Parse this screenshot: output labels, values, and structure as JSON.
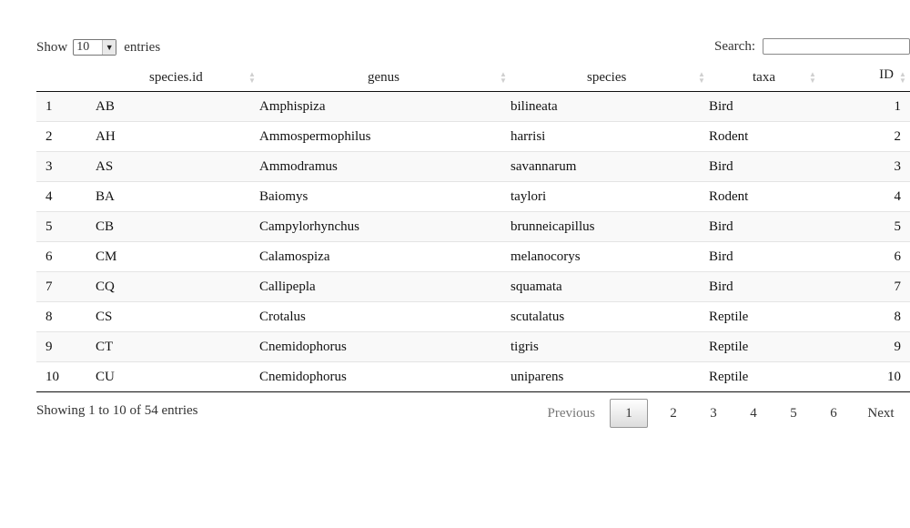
{
  "controls": {
    "show_label": "Show",
    "length_value": "10",
    "entries_label": "entries",
    "search_label": "Search:",
    "search_value": ""
  },
  "table": {
    "columns": [
      "",
      "species.id",
      "genus",
      "species",
      "taxa",
      "ID"
    ],
    "rows": [
      [
        "1",
        "AB",
        "Amphispiza",
        "bilineata",
        "Bird",
        "1"
      ],
      [
        "2",
        "AH",
        "Ammospermophilus",
        "harrisi",
        "Rodent",
        "2"
      ],
      [
        "3",
        "AS",
        "Ammodramus",
        "savannarum",
        "Bird",
        "3"
      ],
      [
        "4",
        "BA",
        "Baiomys",
        "taylori",
        "Rodent",
        "4"
      ],
      [
        "5",
        "CB",
        "Campylorhynchus",
        "brunneicapillus",
        "Bird",
        "5"
      ],
      [
        "6",
        "CM",
        "Calamospiza",
        "melanocorys",
        "Bird",
        "6"
      ],
      [
        "7",
        "CQ",
        "Callipepla",
        "squamata",
        "Bird",
        "7"
      ],
      [
        "8",
        "CS",
        "Crotalus",
        "scutalatus",
        "Reptile",
        "8"
      ],
      [
        "9",
        "CT",
        "Cnemidophorus",
        "tigris",
        "Reptile",
        "9"
      ],
      [
        "10",
        "CU",
        "Cnemidophorus",
        "uniparens",
        "Reptile",
        "10"
      ]
    ]
  },
  "footer": {
    "info": "Showing 1 to 10 of 54 entries",
    "previous": "Previous",
    "pages": [
      "1",
      "2",
      "3",
      "4",
      "5",
      "6"
    ],
    "current_page": "1",
    "next": "Next"
  },
  "icons": {
    "sort": "sort-both-icon",
    "dropdown": "chevron-down-icon"
  }
}
